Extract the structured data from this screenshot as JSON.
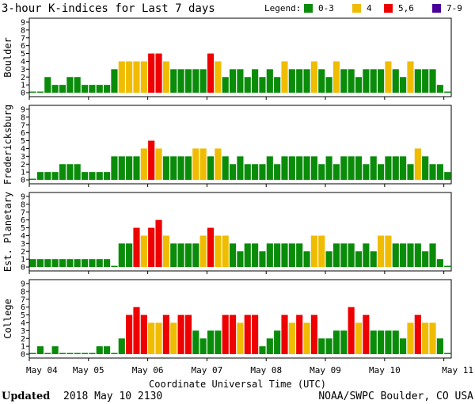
{
  "chart_data": {
    "type": "bar",
    "title": "3-hour K-indices for Last 7 days",
    "legend": {
      "label": "Legend:",
      "entries": [
        {
          "label": "0-3",
          "color": "#0a8c0a",
          "range": [
            0,
            3
          ]
        },
        {
          "label": "4",
          "color": "#f0bc00",
          "range": [
            4,
            4
          ]
        },
        {
          "label": "5,6",
          "color": "#ee0000",
          "range": [
            5,
            6
          ]
        },
        {
          "label": "7-9",
          "color": "#4b0099",
          "range": [
            7,
            9
          ]
        }
      ]
    },
    "ylim": [
      0,
      9
    ],
    "yticks": [
      "0",
      "1",
      "2",
      "3",
      "4",
      "5",
      "6",
      "7",
      "8",
      "9"
    ],
    "x_tick_labels": [
      "May 04",
      "May 05",
      "May 06",
      "May 07",
      "May 08",
      "May 09",
      "May 10",
      "May 11"
    ],
    "xlabel": "Coordinate Universal Time (UTC)",
    "bins_per_day": 8,
    "panels": [
      {
        "station": "Boulder",
        "values": [
          0,
          0,
          2,
          1,
          1,
          2,
          2,
          1,
          1,
          1,
          1,
          3,
          4,
          4,
          4,
          4,
          5,
          5,
          4,
          3,
          3,
          3,
          3,
          3,
          5,
          4,
          2,
          3,
          3,
          2,
          3,
          2,
          3,
          2,
          4,
          3,
          3,
          3,
          4,
          3,
          2,
          4,
          3,
          3,
          2,
          3,
          3,
          3,
          4,
          3,
          2,
          4,
          3,
          3,
          3,
          1,
          0
        ]
      },
      {
        "station": "Fredericksburg",
        "values": [
          0,
          1,
          1,
          1,
          2,
          2,
          2,
          1,
          1,
          1,
          1,
          3,
          3,
          3,
          3,
          4,
          5,
          4,
          3,
          3,
          3,
          3,
          4,
          4,
          3,
          4,
          3,
          2,
          3,
          2,
          2,
          2,
          3,
          2,
          3,
          3,
          3,
          3,
          3,
          2,
          3,
          2,
          3,
          3,
          3,
          2,
          3,
          2,
          3,
          3,
          3,
          2,
          4,
          3,
          2,
          2,
          1
        ]
      },
      {
        "station": "Est. Planetary",
        "values": [
          1,
          1,
          1,
          1,
          1,
          1,
          1,
          1,
          1,
          1,
          1,
          0,
          3,
          3,
          5,
          4,
          5,
          6,
          4,
          3,
          3,
          3,
          3,
          4,
          5,
          4,
          4,
          3,
          2,
          3,
          3,
          2,
          3,
          3,
          3,
          3,
          3,
          2,
          4,
          4,
          2,
          3,
          3,
          3,
          2,
          3,
          2,
          4,
          4,
          3,
          3,
          3,
          3,
          2,
          3,
          1,
          0
        ]
      },
      {
        "station": "College",
        "values": [
          0,
          1,
          0,
          1,
          0,
          0,
          0,
          0,
          0,
          1,
          1,
          0,
          2,
          5,
          6,
          5,
          4,
          4,
          5,
          4,
          5,
          5,
          3,
          2,
          3,
          3,
          5,
          5,
          4,
          5,
          5,
          1,
          2,
          3,
          5,
          4,
          5,
          4,
          5,
          2,
          2,
          3,
          3,
          6,
          4,
          5,
          3,
          3,
          3,
          3,
          2,
          4,
          5,
          4,
          4,
          2,
          0
        ]
      }
    ]
  },
  "footer": {
    "updated_label": "Updated",
    "updated_value": "2018 May 10 2130",
    "credit": "NOAA/SWPC Boulder, CO USA"
  }
}
